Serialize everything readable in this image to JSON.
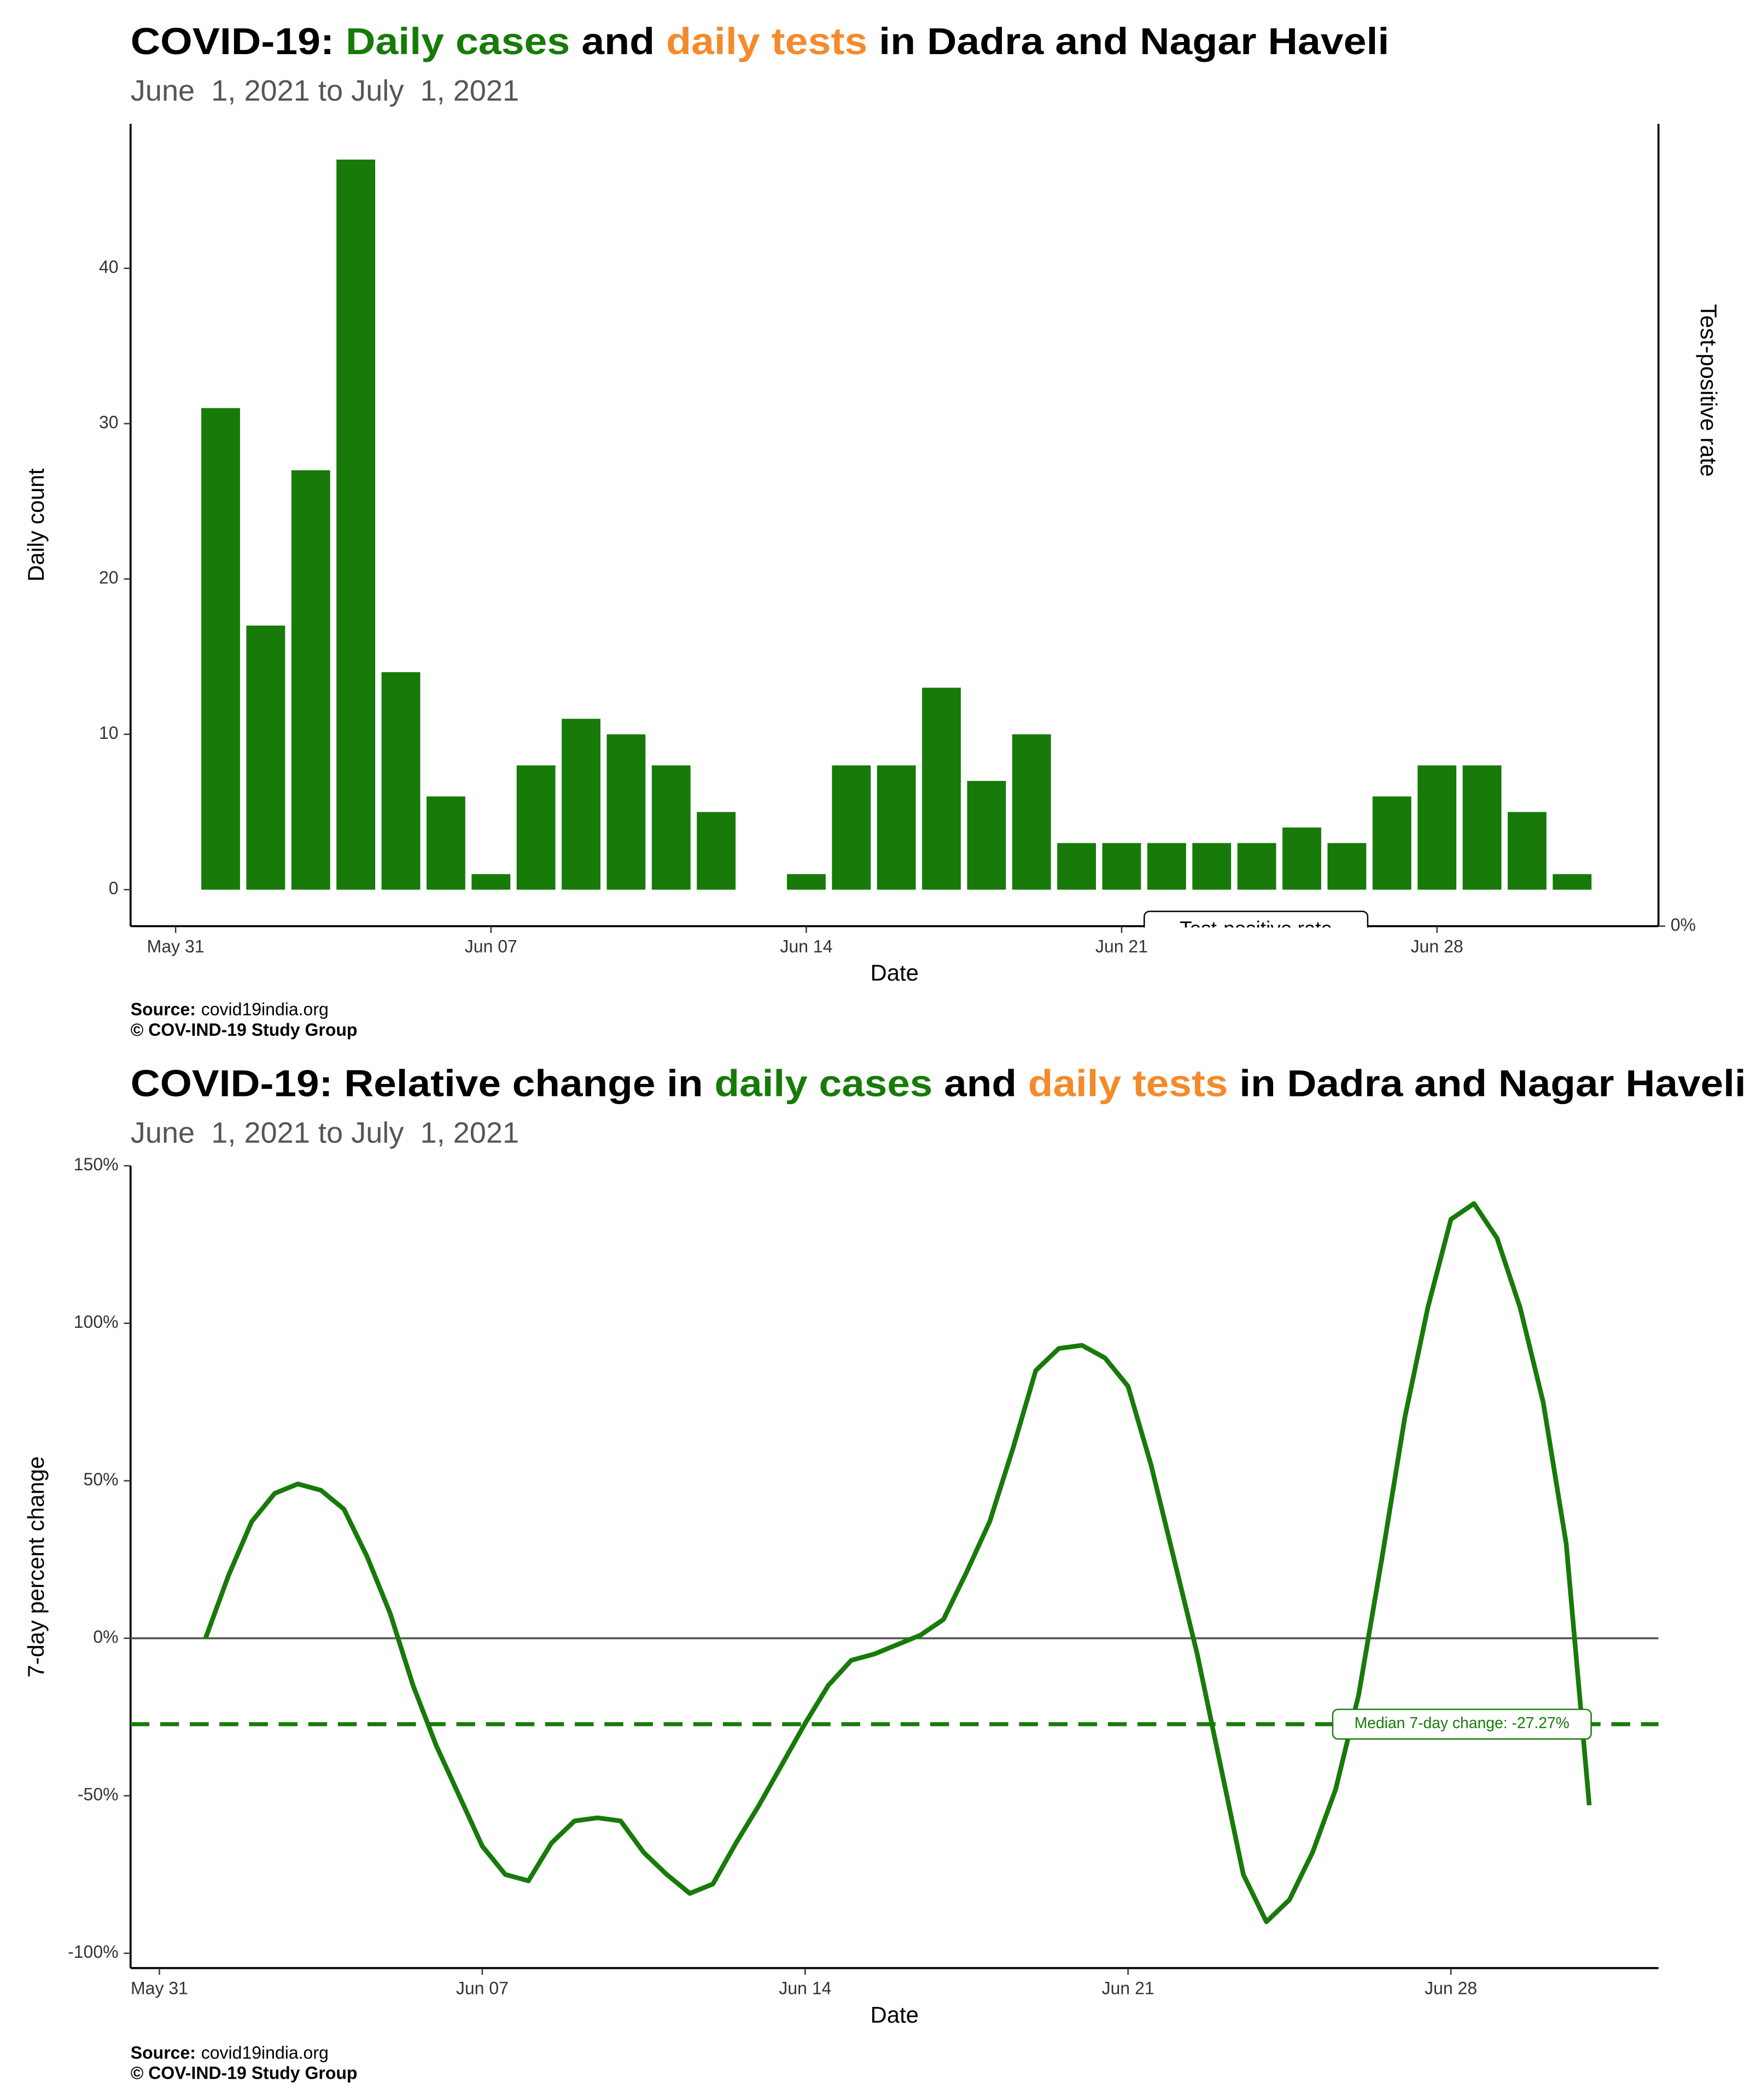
{
  "chart_data": [
    {
      "type": "bar",
      "title": [
        {
          "text": "COVID-19: ",
          "color": "#000000"
        },
        {
          "text": "Daily cases",
          "color": "#177a09"
        },
        {
          "text": " and ",
          "color": "#000000"
        },
        {
          "text": "daily tests",
          "color": "#f58a2b"
        },
        {
          "text": " in Dadra and Nagar Haveli",
          "color": "#000000"
        }
      ],
      "subtitle": "June  1, 2021 to July  1, 2021",
      "x_label": "Date",
      "y_label": "Daily count",
      "y2_label": "Test-positive rate",
      "x": [
        "2021-06-01",
        "2021-06-02",
        "2021-06-03",
        "2021-06-04",
        "2021-06-05",
        "2021-06-06",
        "2021-06-07",
        "2021-06-08",
        "2021-06-09",
        "2021-06-10",
        "2021-06-11",
        "2021-06-12",
        "2021-06-13",
        "2021-06-14",
        "2021-06-15",
        "2021-06-16",
        "2021-06-17",
        "2021-06-18",
        "2021-06-19",
        "2021-06-20",
        "2021-06-21",
        "2021-06-22",
        "2021-06-23",
        "2021-06-24",
        "2021-06-25",
        "2021-06-26",
        "2021-06-27",
        "2021-06-28",
        "2021-06-29",
        "2021-06-30",
        "2021-07-01"
      ],
      "values": [
        31,
        17,
        27,
        47,
        14,
        6,
        1,
        8,
        11,
        10,
        8,
        5,
        null,
        1,
        8,
        8,
        13,
        7,
        10,
        3,
        3,
        3,
        3,
        3,
        4,
        3,
        6,
        8,
        8,
        5,
        1
      ],
      "color": "#177a09",
      "xlim": [
        "2021-05-30",
        "2021-07-02T22:00"
      ],
      "xticks": [
        {
          "value": "2021-05-31",
          "label": "May 31"
        },
        {
          "value": "2021-06-07",
          "label": "Jun 07"
        },
        {
          "value": "2021-06-14",
          "label": "Jun 14"
        },
        {
          "value": "2021-06-21",
          "label": "Jun 21"
        },
        {
          "value": "2021-06-28",
          "label": "Jun 28"
        }
      ],
      "ylim": [
        -2.35,
        49.3
      ],
      "yticks": [
        0,
        10,
        20,
        30,
        40
      ],
      "y2lim": [
        0,
        1
      ],
      "y2ticks": [
        {
          "value": 0,
          "label": "0%"
        }
      ],
      "annotation": "Test-positive rate",
      "source_label": "Source:",
      "source": "covid19india.org",
      "credit": "© COV-IND-19 Study Group"
    },
    {
      "type": "line",
      "title": [
        {
          "text": "COVID-19: Relative change in ",
          "color": "#000000"
        },
        {
          "text": "daily cases",
          "color": "#177a09"
        },
        {
          "text": " and ",
          "color": "#000000"
        },
        {
          "text": "daily tests",
          "color": "#f58a2b"
        },
        {
          "text": " in Dadra and Nagar Haveli",
          "color": "#000000"
        }
      ],
      "subtitle": "June  1, 2021 to July  1, 2021",
      "x_label": "Date",
      "y_label": "7-day percent change",
      "x": [
        "2021-06-01T00:00",
        "2021-06-01T12:00",
        "2021-06-02T00:00",
        "2021-06-02T12:00",
        "2021-06-03T00:00",
        "2021-06-03T12:00",
        "2021-06-04T00:00",
        "2021-06-04T12:00",
        "2021-06-05T00:00",
        "2021-06-05T12:00",
        "2021-06-06T00:00",
        "2021-06-06T12:00",
        "2021-06-07T00:00",
        "2021-06-07T12:00",
        "2021-06-08T00:00",
        "2021-06-08T12:00",
        "2021-06-09T00:00",
        "2021-06-09T12:00",
        "2021-06-10T00:00",
        "2021-06-10T12:00",
        "2021-06-11T00:00",
        "2021-06-11T12:00",
        "2021-06-12T00:00",
        "2021-06-12T12:00",
        "2021-06-13T00:00",
        "2021-06-13T12:00",
        "2021-06-14T00:00",
        "2021-06-14T12:00",
        "2021-06-15T00:00",
        "2021-06-15T12:00",
        "2021-06-16T00:00",
        "2021-06-16T12:00",
        "2021-06-17T00:00",
        "2021-06-17T12:00",
        "2021-06-18T00:00",
        "2021-06-18T12:00",
        "2021-06-19T00:00",
        "2021-06-19T12:00",
        "2021-06-20T00:00",
        "2021-06-20T12:00",
        "2021-06-21T00:00",
        "2021-06-21T12:00",
        "2021-06-22T00:00",
        "2021-06-22T12:00",
        "2021-06-23T00:00",
        "2021-06-23T12:00",
        "2021-06-24T00:00",
        "2021-06-24T12:00",
        "2021-06-25T00:00",
        "2021-06-25T12:00",
        "2021-06-26T00:00",
        "2021-06-26T12:00",
        "2021-06-27T00:00",
        "2021-06-27T12:00",
        "2021-06-28T00:00",
        "2021-06-28T12:00",
        "2021-06-29T00:00",
        "2021-06-29T12:00",
        "2021-06-30T00:00",
        "2021-06-30T12:00",
        "2021-07-01T00:00"
      ],
      "values": [
        0,
        20,
        37,
        46,
        49,
        47,
        41,
        26,
        8,
        -15,
        -34,
        -50,
        -66,
        -75,
        -77,
        -65,
        -58,
        -57,
        -58,
        -68,
        -75,
        -81,
        -78,
        -65,
        -53,
        -40,
        -27,
        -15,
        -7,
        -5,
        -2,
        1,
        6,
        21,
        37,
        60,
        85,
        92,
        93,
        89,
        80,
        55,
        25,
        -5,
        -40,
        -75,
        -90,
        -83,
        -68,
        -48,
        -18,
        25,
        70,
        105,
        133,
        138,
        127,
        105,
        75,
        30,
        -53
      ],
      "color": "#177a09",
      "xlim": [
        "2021-05-30T09:00",
        "2021-07-02T12:00"
      ],
      "xticks": [
        {
          "value": "2021-05-31T00:00",
          "label": "May 31"
        },
        {
          "value": "2021-06-07T00:00",
          "label": "Jun 07"
        },
        {
          "value": "2021-06-14T00:00",
          "label": "Jun 14"
        },
        {
          "value": "2021-06-21T00:00",
          "label": "Jun 21"
        },
        {
          "value": "2021-06-28T00:00",
          "label": "Jun 28"
        }
      ],
      "ylim": [
        -104.7,
        150
      ],
      "yticks": [
        {
          "value": -100,
          "label": "-100%"
        },
        {
          "value": -50,
          "label": "-50%"
        },
        {
          "value": 0,
          "label": "0%"
        },
        {
          "value": 50,
          "label": "50%"
        },
        {
          "value": 100,
          "label": "100%"
        },
        {
          "value": 150,
          "label": "150%"
        }
      ],
      "zero_line": true,
      "median": {
        "value": -27.27,
        "label": "Median 7-day change: -27.27%"
      },
      "source_label": "Source:",
      "source": "covid19india.org",
      "credit": "© COV-IND-19 Study Group"
    }
  ]
}
